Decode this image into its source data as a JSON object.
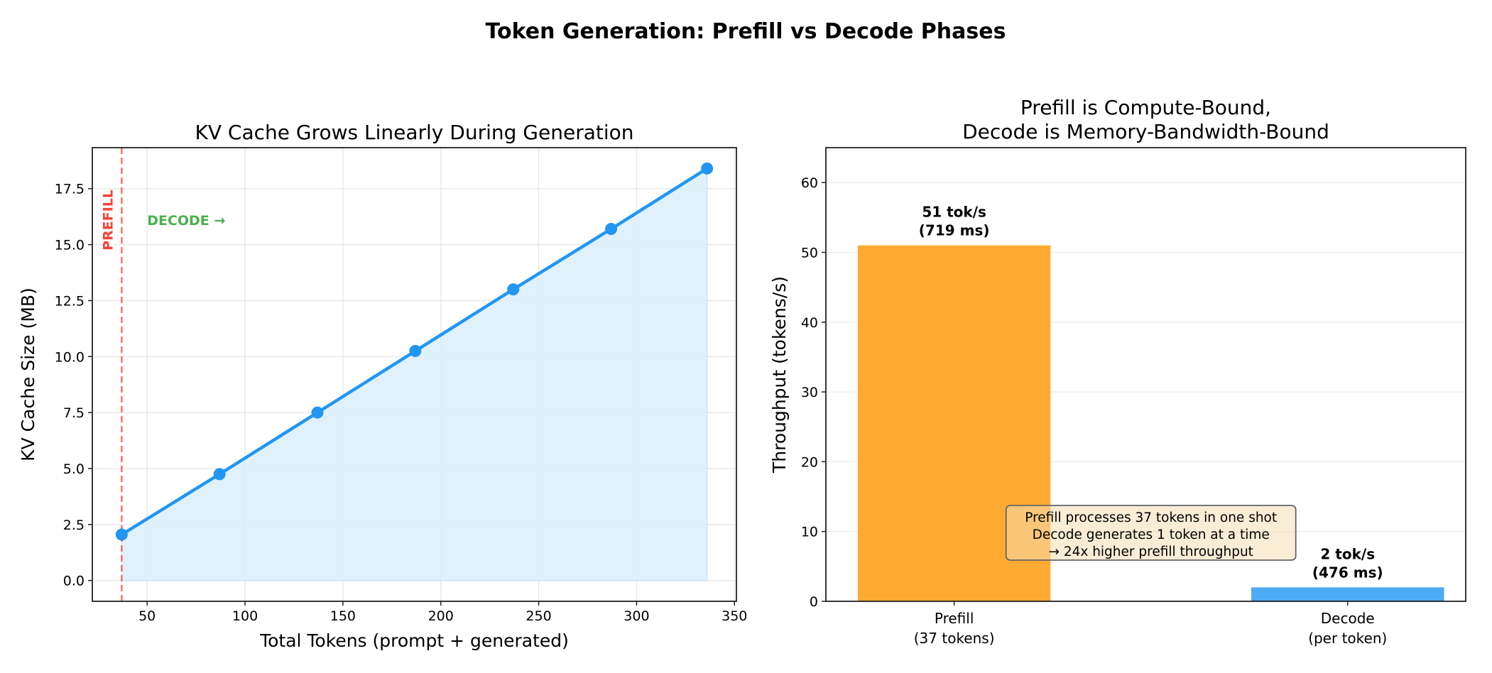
{
  "title": "Token Generation: Prefill vs Decode Phases",
  "chart_data": [
    {
      "type": "line",
      "title": "KV Cache Grows Linearly During Generation",
      "xlabel": "Total Tokens (prompt + generated)",
      "ylabel": "KV Cache Size (MB)",
      "x": [
        37,
        87,
        137,
        187,
        237,
        287,
        336
      ],
      "y": [
        2.05,
        4.75,
        7.5,
        10.25,
        13.0,
        15.7,
        18.4
      ],
      "xlim": [
        22,
        351
      ],
      "ylim": [
        -0.93,
        19.33
      ],
      "xticks": [
        50,
        100,
        150,
        200,
        250,
        300,
        350
      ],
      "yticks": [
        0.0,
        2.5,
        5.0,
        7.5,
        10.0,
        12.5,
        15.0,
        17.5
      ],
      "ytick_labels": [
        "0.0",
        "2.5",
        "5.0",
        "7.5",
        "10.0",
        "12.5",
        "15.0",
        "17.5"
      ],
      "grid": true,
      "fill_under": true,
      "line_color": "#2196F3",
      "fill_color": "#DCEEFC",
      "annotations": {
        "prefill_line_x": 37,
        "prefill_label": "PREFILL",
        "prefill_color": "#F44336",
        "decode_label": "DECODE →",
        "decode_color": "#4CAF50"
      }
    },
    {
      "type": "bar",
      "title": "Prefill is Compute-Bound,\nDecode is Memory-Bandwidth-Bound",
      "title_lines": [
        "Prefill is Compute-Bound,",
        "Decode is Memory-Bandwidth-Bound"
      ],
      "xlabel": "",
      "ylabel": "Throughput (tokens/s)",
      "categories": [
        "Prefill\n(37 tokens)",
        "Decode\n(per token)"
      ],
      "category_lines": [
        [
          "Prefill",
          "(37 tokens)"
        ],
        [
          "Decode",
          "(per token)"
        ]
      ],
      "values": [
        51,
        2
      ],
      "colors": [
        "#FFAB33",
        "#4DABF5"
      ],
      "data_labels": [
        [
          "51 tok/s",
          "(719 ms)"
        ],
        [
          "2 tok/s",
          "(476 ms)"
        ]
      ],
      "ylim": [
        0,
        65
      ],
      "yticks": [
        0,
        10,
        20,
        30,
        40,
        50,
        60
      ],
      "grid": true,
      "note_lines": [
        "Prefill processes 37 tokens in one shot",
        "Decode generates 1 token at a time",
        "→ 24x higher prefill throughput"
      ]
    }
  ]
}
